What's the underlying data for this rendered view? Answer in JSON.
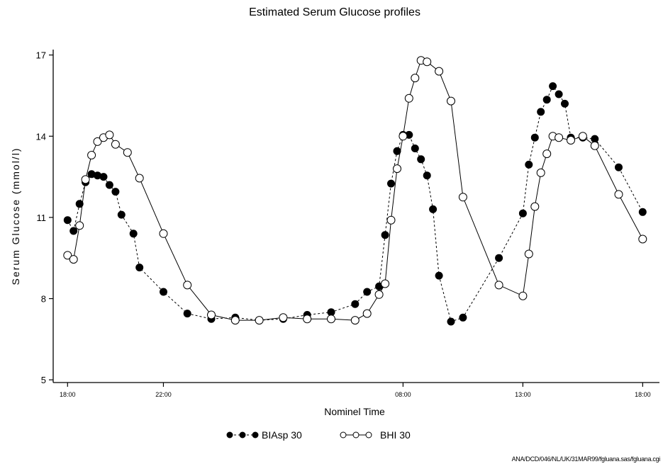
{
  "chart_data": {
    "type": "line",
    "title": "Estimated Serum Glucose profiles",
    "xlabel": "Nominel Time",
    "ylabel": "Serum Glucose  (mmol/l)",
    "x_tick_labels": [
      "18:00",
      "22:00",
      "08:00",
      "13:00",
      "18:00"
    ],
    "x_ticks_hours": [
      0,
      4,
      14,
      19,
      24
    ],
    "xlim_hours": [
      -0.6,
      24.7
    ],
    "y_ticks": [
      5,
      8,
      11,
      14,
      17
    ],
    "ylim": [
      4.9,
      17.2
    ],
    "grid": false,
    "legend_position": "bottom-center",
    "footnote": "ANA/DCD/046/NL/UK/31MAR99/fgluana.sas/fgluana.cgi",
    "series": [
      {
        "name": "BIAsp 30",
        "marker": "filled-circle",
        "line": "dashed",
        "x_hours": [
          0,
          0.25,
          0.5,
          0.75,
          1,
          1.25,
          1.5,
          1.75,
          2,
          2.25,
          2.75,
          3,
          4,
          5,
          6,
          7,
          8,
          9,
          10,
          11,
          12,
          12.5,
          13,
          13.25,
          13.5,
          13.75,
          14,
          14.25,
          14.5,
          14.75,
          15,
          15.25,
          15.5,
          16,
          16.5,
          18,
          19,
          19.25,
          19.5,
          19.75,
          20,
          20.25,
          20.5,
          20.75,
          21,
          21.5,
          22,
          23,
          24
        ],
        "values": [
          10.9,
          10.5,
          11.5,
          12.3,
          12.6,
          12.55,
          12.5,
          12.2,
          11.95,
          11.1,
          10.4,
          9.15,
          8.25,
          7.45,
          7.25,
          7.3,
          7.2,
          7.25,
          7.4,
          7.5,
          7.8,
          8.25,
          8.45,
          10.35,
          12.25,
          13.45,
          14.05,
          14.05,
          13.55,
          13.15,
          12.55,
          11.3,
          8.85,
          7.15,
          7.3,
          9.5,
          11.15,
          12.95,
          13.95,
          14.9,
          15.35,
          15.85,
          15.55,
          15.2,
          13.95,
          13.95,
          13.9,
          12.85,
          11.2
        ],
        "x_hours_note": "",
        "x_hours_pairs": []
      },
      {
        "name": "BHI 30",
        "marker": "open-circle",
        "line": "solid",
        "x_hours": [
          0,
          0.25,
          0.5,
          0.75,
          1,
          1.25,
          1.5,
          1.75,
          2,
          2.5,
          3,
          4,
          5,
          6,
          7,
          8,
          9,
          10,
          11,
          12,
          12.5,
          13,
          13.25,
          13.5,
          13.75,
          14,
          14.25,
          14.5,
          14.75,
          15,
          15.5,
          16,
          16.5,
          18,
          19,
          19.25,
          19.5,
          19.75,
          20,
          20.25,
          20.5,
          21,
          21.5,
          22,
          23,
          24
        ],
        "values": [
          9.6,
          9.45,
          10.7,
          12.4,
          13.3,
          13.8,
          13.95,
          14.05,
          13.7,
          13.4,
          12.45,
          10.4,
          8.5,
          7.4,
          7.2,
          7.2,
          7.3,
          7.25,
          7.25,
          7.2,
          7.45,
          8.15,
          8.55,
          10.9,
          12.8,
          14.0,
          15.4,
          16.15,
          16.8,
          16.75,
          16.4,
          15.3,
          11.75,
          8.5,
          8.1,
          9.65,
          11.4,
          12.65,
          13.35,
          14.0,
          13.95,
          13.85,
          14.0,
          13.65,
          11.85,
          10.2
        ]
      }
    ]
  },
  "legend": {
    "items": [
      {
        "label": "BIAsp 30"
      },
      {
        "label": "BHI 30"
      }
    ]
  }
}
